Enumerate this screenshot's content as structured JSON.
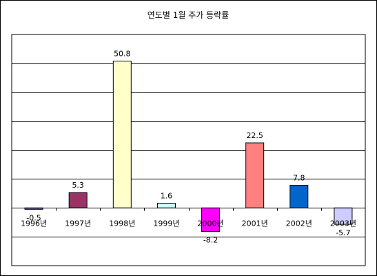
{
  "chart_data": {
    "type": "bar",
    "title": "연도별 1월 주가 등락률",
    "xlabel": "",
    "ylabel": "",
    "categories": [
      "1996년",
      "1997년",
      "1998년",
      "1999년",
      "2000년",
      "2001년",
      "2002년",
      "2003년"
    ],
    "values": [
      -0.5,
      5.3,
      50.8,
      1.6,
      -8.2,
      22.5,
      7.8,
      -5.7
    ],
    "value_labels": [
      "-0.5",
      "5.3",
      "50.8",
      "1.6",
      "-8.2",
      "22.5",
      "7.8",
      "-5.7"
    ],
    "bar_colors": [
      "#6666aa",
      "#993366",
      "#ffffcc",
      "#ccffff",
      "#ff00ff",
      "#ff8080",
      "#0066cc",
      "#ccccff"
    ],
    "ylim": [
      -20,
      60
    ],
    "grid": true,
    "legend": "none"
  }
}
